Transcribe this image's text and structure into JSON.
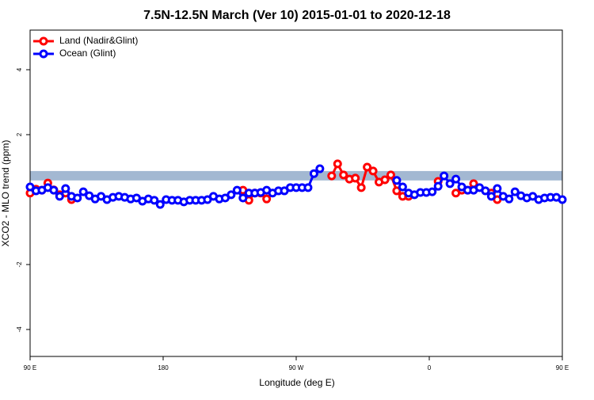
{
  "chart_data": {
    "type": "line",
    "title": "7.5N-12.5N March (Ver 10)   2015-01-01 to 2020-12-18",
    "x_label": "Longitude (deg E)",
    "y_label": "XCO2 - MLO trend (ppm)",
    "x": [
      90,
      94,
      98,
      102,
      106,
      110,
      114,
      118,
      122,
      126,
      130,
      134,
      138,
      142,
      146,
      150,
      154,
      158,
      162,
      166,
      170,
      174,
      178,
      182,
      186,
      190,
      194,
      198,
      202,
      206,
      210,
      214,
      218,
      222,
      226,
      230,
      234,
      238,
      242,
      246,
      250,
      254,
      258,
      262,
      266,
      270,
      274,
      278,
      282,
      286,
      290,
      294,
      298,
      302,
      306,
      310,
      314,
      318,
      322,
      326,
      330,
      334,
      338,
      342,
      346,
      350,
      354,
      358,
      362,
      366,
      370,
      374,
      378,
      382,
      386,
      390,
      394,
      398,
      402,
      406,
      410,
      414,
      418,
      422,
      426,
      430,
      434,
      438,
      442,
      446,
      450
    ],
    "series": [
      {
        "name": "Land (Nadir&Glint)",
        "color": "#ff0000",
        "values": [
          0.2,
          0.32,
          0.29,
          0.51,
          0.3,
          0.15,
          0.2,
          0.0,
          null,
          null,
          null,
          null,
          null,
          null,
          null,
          null,
          null,
          null,
          null,
          null,
          null,
          null,
          null,
          null,
          null,
          null,
          null,
          null,
          null,
          null,
          null,
          null,
          null,
          null,
          null,
          null,
          0.29,
          -0.02,
          0.2,
          0.2,
          0.02,
          null,
          null,
          null,
          null,
          null,
          null,
          null,
          null,
          null,
          null,
          0.73,
          1.1,
          0.76,
          0.63,
          0.66,
          0.37,
          1.0,
          0.88,
          0.54,
          0.61,
          0.76,
          0.27,
          0.1,
          0.1,
          null,
          null,
          null,
          null,
          0.56,
          null,
          null,
          0.2,
          0.29,
          0.29,
          0.49,
          null,
          null,
          0.2,
          0.0,
          null,
          null,
          null,
          null,
          null,
          null,
          null,
          null,
          null,
          null,
          null
        ]
      },
      {
        "name": "Ocean (Glint)",
        "color": "#0000ff",
        "values": [
          0.39,
          0.27,
          0.29,
          0.37,
          0.29,
          0.1,
          0.34,
          0.1,
          0.05,
          0.24,
          0.12,
          0.02,
          0.1,
          0,
          0.07,
          0.1,
          0.07,
          0.02,
          0.05,
          -0.05,
          0.02,
          -0.02,
          -0.15,
          0,
          -0.02,
          -0.02,
          -0.07,
          -0.02,
          -0.02,
          -0.02,
          0,
          0.1,
          0.02,
          0.05,
          0.15,
          0.29,
          0.05,
          0.2,
          0.2,
          0.22,
          0.29,
          0.2,
          0.27,
          0.27,
          0.37,
          0.37,
          0.37,
          0.37,
          0.8,
          0.95,
          null,
          null,
          null,
          null,
          null,
          null,
          null,
          null,
          null,
          null,
          null,
          null,
          0.59,
          0.39,
          0.2,
          0.15,
          0.22,
          0.22,
          0.24,
          0.41,
          0.73,
          0.49,
          0.63,
          0.39,
          0.29,
          0.29,
          0.37,
          0.27,
          0.1,
          0.34,
          0.1,
          0.02,
          0.24,
          0.12,
          0.05,
          0.1,
          0,
          0.05,
          0.07,
          0.07,
          0
        ]
      }
    ],
    "band": [
      0.59,
      0.88
    ],
    "band_color": "#a3b8d2",
    "xlim": [
      90,
      450
    ],
    "xticks": [
      {
        "value": 90,
        "label": "90 E"
      },
      180,
      {
        "value": 270,
        "label": "90 W"
      },
      {
        "value": 360,
        "label": "0"
      },
      {
        "value": 450,
        "label": "90 E"
      }
    ],
    "ylim": [
      -4.83,
      5.22
    ],
    "yticks": [
      4,
      2,
      -2,
      -4
    ],
    "legend": "top-left"
  }
}
